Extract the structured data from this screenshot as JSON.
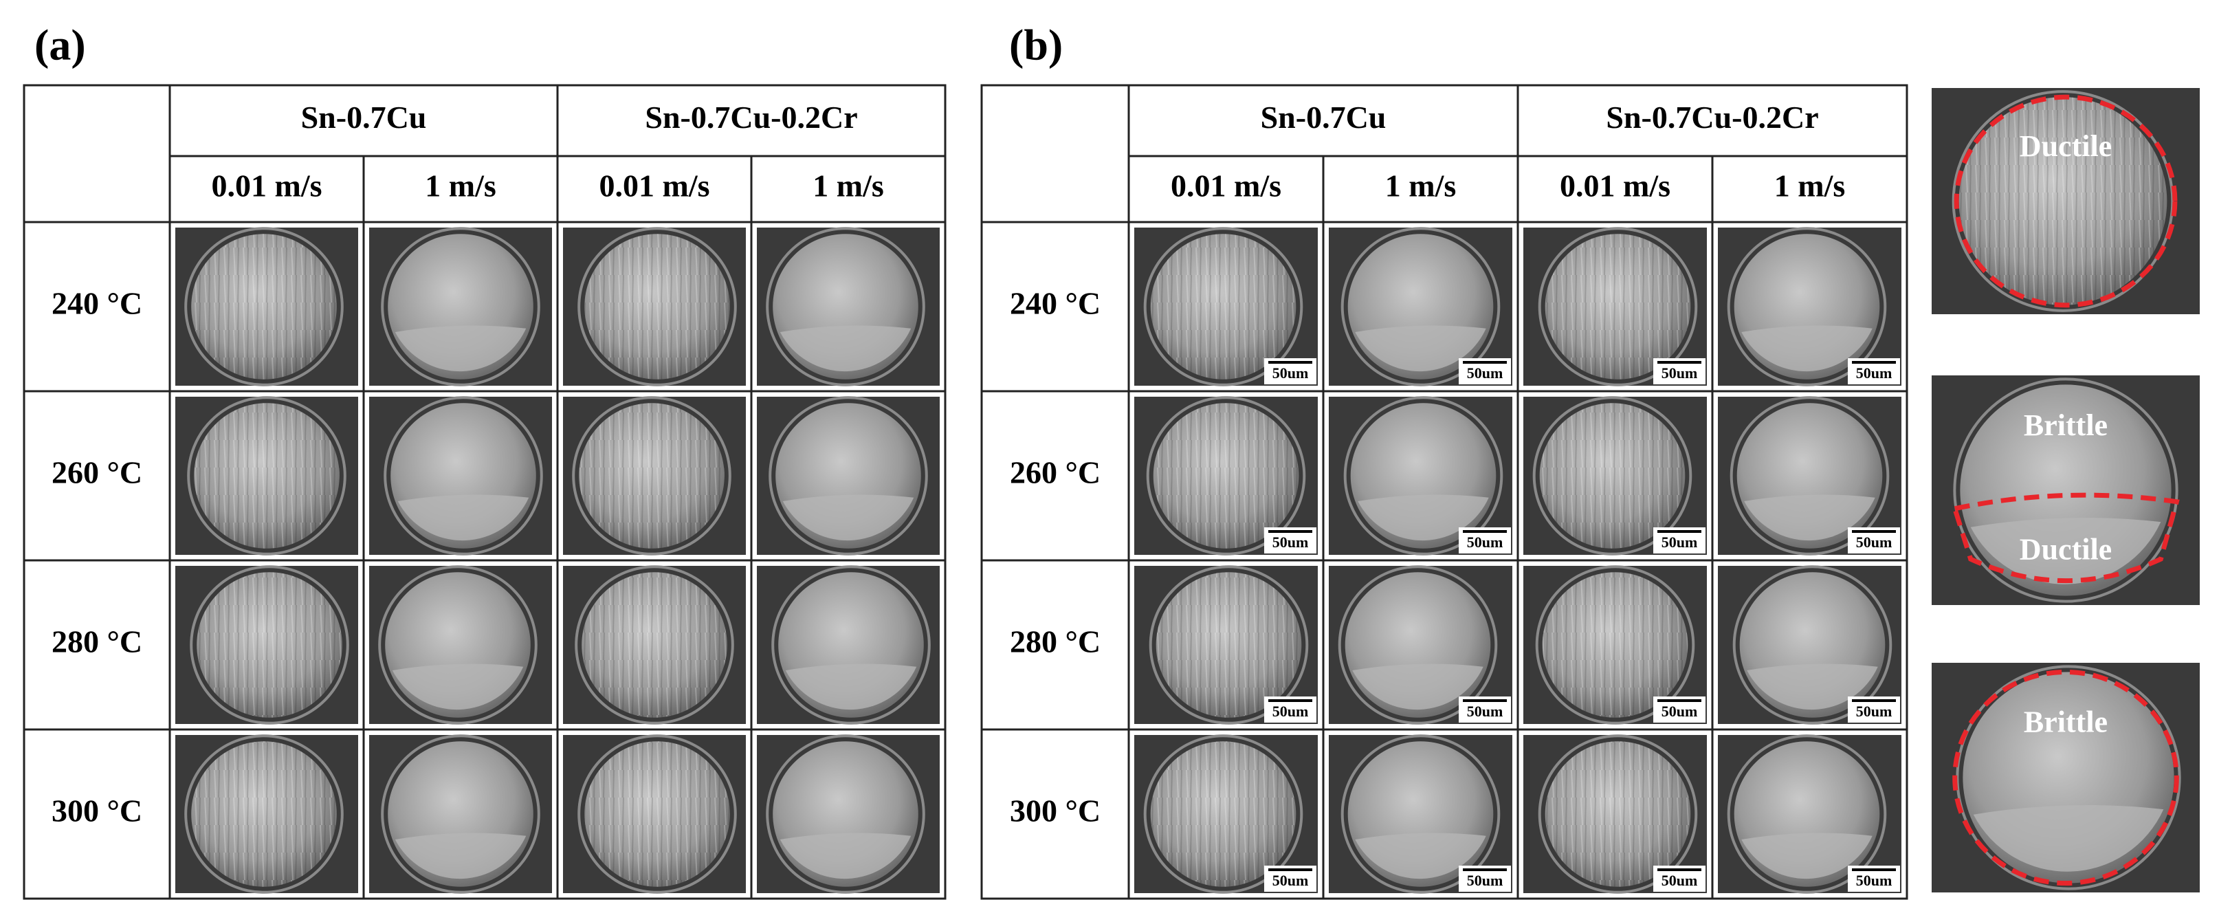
{
  "panels": [
    {
      "label": "(a)",
      "groups": [
        "Sn-0.7Cu",
        "Sn-0.7Cu-0.2Cr"
      ],
      "speeds": [
        "0.01 m/s",
        "1 m/s",
        "0.01 m/s",
        "1 m/s"
      ],
      "rows": [
        "240 °C",
        "260 °C",
        "280 °C",
        "300 °C"
      ]
    },
    {
      "label": "(b)",
      "groups": [
        "Sn-0.7Cu",
        "Sn-0.7Cu-0.2Cr"
      ],
      "speeds": [
        "0.01 m/s",
        "1 m/s",
        "0.01 m/s",
        "1 m/s"
      ],
      "rows": [
        "240 °C",
        "260 °C",
        "280 °C",
        "300 °C"
      ],
      "scale_bar": "50um"
    }
  ],
  "examples": [
    {
      "labels": [
        "Ductile"
      ]
    },
    {
      "labels": [
        "Brittle",
        "Ductile"
      ]
    },
    {
      "labels": [
        "Brittle"
      ]
    }
  ]
}
